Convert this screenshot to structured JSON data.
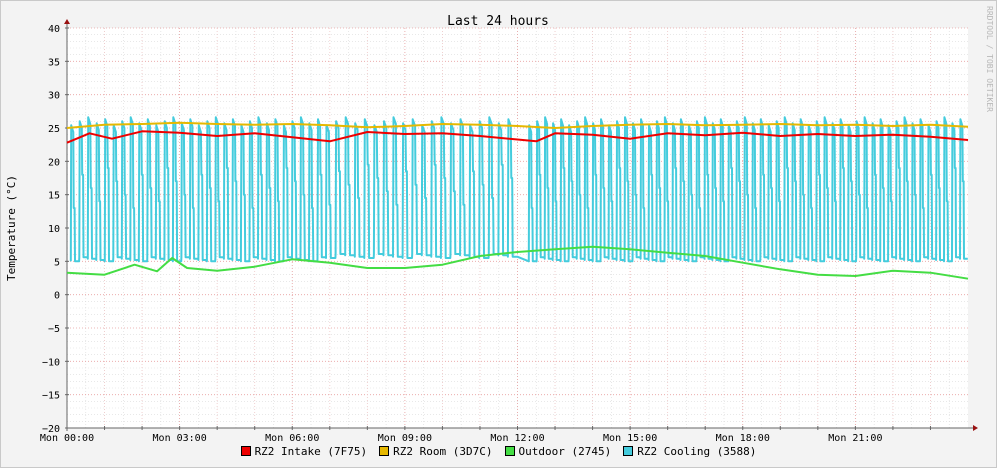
{
  "chart_data": {
    "type": "line",
    "title": "Last 24 hours",
    "ylabel": "Temperature (°C)",
    "xlabel": "",
    "ylim": [
      -20,
      40
    ],
    "y_ticks": [
      -20,
      -15,
      -10,
      -5,
      0,
      5,
      10,
      15,
      20,
      25,
      30,
      35,
      40
    ],
    "x_hours": [
      0,
      24
    ],
    "x_ticks": [
      {
        "hour": 0,
        "label": "Mon 00:00"
      },
      {
        "hour": 3,
        "label": "Mon 03:00"
      },
      {
        "hour": 6,
        "label": "Mon 06:00"
      },
      {
        "hour": 9,
        "label": "Mon 09:00"
      },
      {
        "hour": 12,
        "label": "Mon 12:00"
      },
      {
        "hour": 15,
        "label": "Mon 15:00"
      },
      {
        "hour": 18,
        "label": "Mon 18:00"
      },
      {
        "hour": 21,
        "label": "Mon 21:00"
      }
    ],
    "grid": true,
    "legend_position": "bottom",
    "watermark": "RRDTOOL / TOBI OETIKER",
    "series": [
      {
        "name": "RZ2 Intake (7F75)",
        "color": "#ee0000",
        "points": [
          [
            0,
            22.8
          ],
          [
            0.6,
            24.2
          ],
          [
            1.2,
            23.4
          ],
          [
            2,
            24.5
          ],
          [
            3,
            24.3
          ],
          [
            4,
            23.8
          ],
          [
            5,
            24.2
          ],
          [
            6,
            23.6
          ],
          [
            7,
            23.0
          ],
          [
            8,
            24.4
          ],
          [
            9,
            24.1
          ],
          [
            10,
            24.2
          ],
          [
            11,
            23.8
          ],
          [
            12.5,
            23.0
          ],
          [
            13,
            24.2
          ],
          [
            14,
            24.0
          ],
          [
            15,
            23.4
          ],
          [
            16,
            24.2
          ],
          [
            17,
            23.9
          ],
          [
            18,
            24.3
          ],
          [
            19,
            23.8
          ],
          [
            20,
            24.1
          ],
          [
            21,
            23.8
          ],
          [
            22,
            24.0
          ],
          [
            23,
            23.7
          ],
          [
            24,
            23.2
          ]
        ]
      },
      {
        "name": "RZ2 Room (3D7C)",
        "color": "#e6b800",
        "points": [
          [
            0,
            25.0
          ],
          [
            1,
            25.5
          ],
          [
            2,
            25.6
          ],
          [
            3,
            25.8
          ],
          [
            4,
            25.6
          ],
          [
            5,
            25.5
          ],
          [
            6,
            25.6
          ],
          [
            7,
            25.4
          ],
          [
            8,
            25.1
          ],
          [
            9,
            25.3
          ],
          [
            10,
            25.6
          ],
          [
            11,
            25.5
          ],
          [
            12,
            25.3
          ],
          [
            13,
            25.0
          ],
          [
            14,
            25.3
          ],
          [
            15,
            25.5
          ],
          [
            16,
            25.6
          ],
          [
            17,
            25.4
          ],
          [
            18,
            25.5
          ],
          [
            19,
            25.6
          ],
          [
            20,
            25.4
          ],
          [
            21,
            25.5
          ],
          [
            22,
            25.3
          ],
          [
            23,
            25.5
          ],
          [
            24,
            25.2
          ]
        ]
      },
      {
        "name": "Outdoor (2745)",
        "color": "#44dd44",
        "points": [
          [
            0,
            3.3
          ],
          [
            1,
            3.0
          ],
          [
            1.8,
            4.5
          ],
          [
            2.4,
            3.5
          ],
          [
            2.8,
            5.5
          ],
          [
            3.2,
            4.0
          ],
          [
            4,
            3.6
          ],
          [
            5,
            4.2
          ],
          [
            6,
            5.3
          ],
          [
            7,
            4.8
          ],
          [
            8,
            4.0
          ],
          [
            9,
            4.0
          ],
          [
            10,
            4.5
          ],
          [
            11,
            5.8
          ],
          [
            12,
            6.4
          ],
          [
            13,
            6.8
          ],
          [
            14,
            7.2
          ],
          [
            15,
            6.8
          ],
          [
            16,
            6.3
          ],
          [
            17,
            5.8
          ],
          [
            18,
            4.8
          ],
          [
            19,
            3.8
          ],
          [
            20,
            3.0
          ],
          [
            21,
            2.8
          ],
          [
            22,
            3.6
          ],
          [
            23,
            3.3
          ],
          [
            24,
            2.4
          ]
        ]
      },
      {
        "name": "RZ2 Cooling (3588)",
        "color": "#44ccdd",
        "cycles": [
          {
            "from": 0.1,
            "to": 6.9,
            "cycles": 30,
            "high": 26.0,
            "low": 5.0
          },
          {
            "from": 6.9,
            "to": 12.0,
            "cycles": 20,
            "high": 26.0,
            "low": 5.5
          },
          {
            "from": 12.3,
            "to": 24.0,
            "cycles": 55,
            "high": 26.0,
            "low": 5.0
          }
        ]
      }
    ]
  }
}
